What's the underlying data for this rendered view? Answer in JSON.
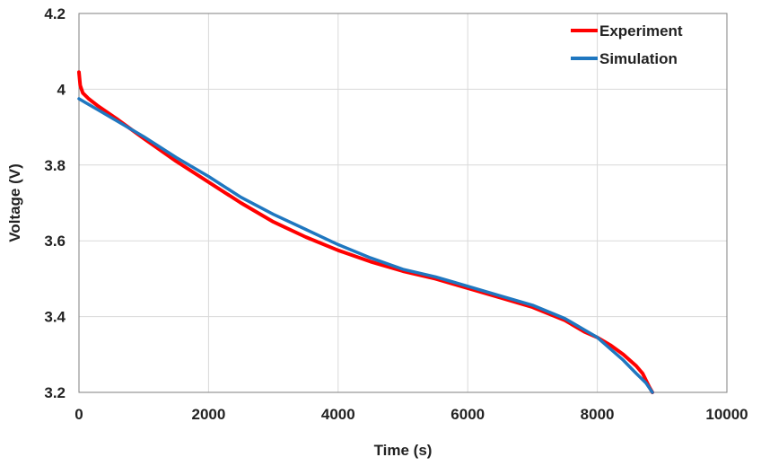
{
  "chart_data": {
    "type": "line",
    "title": "",
    "xlabel": "Time  (s)",
    "ylabel": "Voltage  (V)",
    "xlim": [
      0,
      10000
    ],
    "ylim": [
      3.2,
      4.2
    ],
    "x_ticks": [
      "0",
      "2000",
      "4000",
      "6000",
      "8000",
      "10000"
    ],
    "y_ticks": [
      "3.2",
      "3.4",
      "3.6",
      "3.8",
      "4",
      "4.2"
    ],
    "grid": true,
    "legend_position": "top-right",
    "series": [
      {
        "name": "Experiment",
        "color": "#ff0000",
        "x": [
          0,
          20,
          60,
          150,
          300,
          600,
          1000,
          1500,
          2000,
          2500,
          3000,
          3500,
          4000,
          4500,
          5000,
          5500,
          6000,
          6500,
          7000,
          7500,
          7800,
          8000,
          8200,
          8400,
          8600,
          8700,
          8800,
          8850
        ],
        "y": [
          4.045,
          4.01,
          3.99,
          3.975,
          3.955,
          3.92,
          3.87,
          3.81,
          3.755,
          3.7,
          3.65,
          3.61,
          3.575,
          3.545,
          3.52,
          3.5,
          3.475,
          3.45,
          3.425,
          3.39,
          3.36,
          3.345,
          3.325,
          3.3,
          3.27,
          3.25,
          3.215,
          3.2
        ]
      },
      {
        "name": "Simulation",
        "color": "#1f77c0",
        "x": [
          0,
          100,
          300,
          600,
          1000,
          1500,
          2000,
          2500,
          3000,
          3500,
          4000,
          4500,
          5000,
          5500,
          6000,
          6500,
          7000,
          7500,
          7800,
          8000,
          8200,
          8400,
          8600,
          8750,
          8850
        ],
        "y": [
          3.975,
          3.965,
          3.945,
          3.915,
          3.875,
          3.82,
          3.77,
          3.715,
          3.67,
          3.63,
          3.59,
          3.555,
          3.525,
          3.505,
          3.48,
          3.455,
          3.43,
          3.395,
          3.365,
          3.345,
          3.315,
          3.285,
          3.25,
          3.225,
          3.2
        ]
      }
    ]
  }
}
